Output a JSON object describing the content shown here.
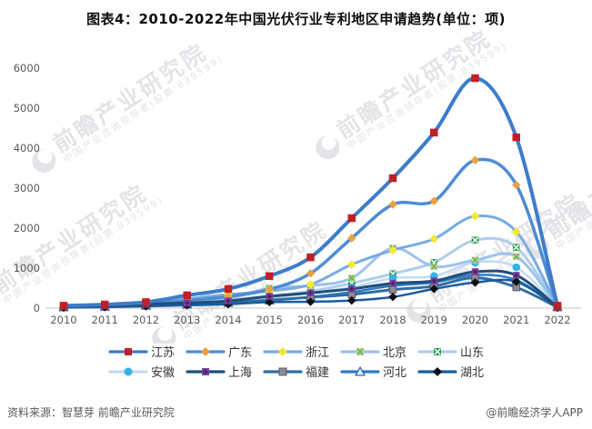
{
  "title": "图表4：2010-2022年中国光伏行业专利地区申请趋势(单位：项)",
  "footer": {
    "source": "资料来源：智慧芽 前瞻产业研究院",
    "credit": "@前瞻经济学人APP"
  },
  "watermark": {
    "main": "前瞻产业研究院",
    "sub": "中国产业咨询领导者(股票:839599)"
  },
  "axis": {
    "y_tick_labels": [
      "0",
      "1000",
      "2000",
      "3000",
      "4000",
      "5000",
      "6000"
    ],
    "x_tick_labels": [
      "2010",
      "2011",
      "2012",
      "2013",
      "2014",
      "2015",
      "2016",
      "2017",
      "2018",
      "2019",
      "2020",
      "2021",
      "2022"
    ],
    "axis_line_color": "#d0d0d0",
    "tick_label_color": "#595959"
  },
  "chart_data": {
    "type": "line",
    "title": "图表4：2010-2022年中国光伏行业专利地区申请趋势(单位：项)",
    "unit": "项",
    "x": [
      2010,
      2011,
      2012,
      2013,
      2014,
      2015,
      2016,
      2017,
      2018,
      2019,
      2020,
      2021,
      2022
    ],
    "ylim": [
      0,
      6000
    ],
    "ytick_step": 1000,
    "grid": false,
    "legend_position": "bottom",
    "series": [
      {
        "id": "jiangsu",
        "name": "江苏",
        "line_color": "#3d7cca",
        "line_width": 4,
        "marker": {
          "type": "square",
          "fill": "#bf2026"
        },
        "values": [
          60,
          90,
          150,
          320,
          480,
          800,
          1270,
          2250,
          3250,
          4390,
          5750,
          4270,
          60
        ]
      },
      {
        "id": "guangdong",
        "name": "广东",
        "line_color": "#4f8bd3",
        "line_width": 3.5,
        "marker": {
          "type": "diamond",
          "fill": "#eaa23f"
        },
        "values": [
          40,
          60,
          110,
          190,
          290,
          470,
          870,
          1750,
          2590,
          2680,
          3700,
          3080,
          50
        ]
      },
      {
        "id": "zhejiang",
        "name": "浙江",
        "line_color": "#79abe2",
        "line_width": 3,
        "marker": {
          "type": "diamond",
          "fill": "#f4e92c"
        },
        "values": [
          35,
          50,
          90,
          230,
          340,
          430,
          590,
          1090,
          1450,
          1730,
          2300,
          1910,
          35
        ]
      },
      {
        "id": "beijing",
        "name": "北京",
        "line_color": "#9cc3e9",
        "line_width": 3,
        "marker": {
          "type": "square-x",
          "fill": "#b5d99a",
          "accent": "#6fa84f"
        },
        "values": [
          55,
          75,
          130,
          160,
          240,
          500,
          560,
          750,
          1500,
          1040,
          1200,
          1290,
          30
        ]
      },
      {
        "id": "shandong",
        "name": "山东",
        "line_color": "#aecdee",
        "line_width": 3,
        "marker": {
          "type": "square-x",
          "fill": "#2f9e4f",
          "accent": "#ffffff"
        },
        "values": [
          45,
          65,
          110,
          140,
          200,
          300,
          420,
          620,
          860,
          1140,
          1700,
          1520,
          40
        ]
      },
      {
        "id": "anhui",
        "name": "安徽",
        "line_color": "#c3dbf3",
        "line_width": 2.5,
        "marker": {
          "type": "circle",
          "fill": "#2fb3e8"
        },
        "values": [
          25,
          40,
          70,
          110,
          160,
          250,
          380,
          520,
          750,
          800,
          1140,
          1020,
          25
        ]
      },
      {
        "id": "shanghai",
        "name": "上海",
        "line_color": "#1f4e79",
        "line_width": 3,
        "marker": {
          "type": "square-plus",
          "fill": "#7b3fa0",
          "accent": "#45215e"
        },
        "values": [
          50,
          65,
          100,
          130,
          180,
          295,
          380,
          480,
          620,
          680,
          910,
          820,
          30
        ]
      },
      {
        "id": "fujian",
        "name": "福建",
        "line_color": "#2e6da4",
        "line_width": 3,
        "marker": {
          "type": "square",
          "fill": "#8b8b93",
          "accent": "#5a5a62"
        },
        "values": [
          30,
          45,
          75,
          100,
          140,
          200,
          270,
          340,
          460,
          550,
          760,
          520,
          20
        ]
      },
      {
        "id": "hebei",
        "name": "河北",
        "line_color": "#2f7bc3",
        "line_width": 2.5,
        "marker": {
          "type": "triangle",
          "fill": "#e8f1fa",
          "accent": "#2f6db5"
        },
        "values": [
          20,
          35,
          60,
          90,
          130,
          190,
          280,
          400,
          560,
          640,
          830,
          700,
          25
        ]
      },
      {
        "id": "hubei",
        "name": "湖北",
        "line_color": "#1b5c9e",
        "line_width": 2.5,
        "marker": {
          "type": "diamond",
          "fill": "#101016"
        },
        "values": [
          15,
          25,
          45,
          70,
          100,
          150,
          160,
          190,
          280,
          480,
          640,
          660,
          15
        ]
      }
    ]
  }
}
